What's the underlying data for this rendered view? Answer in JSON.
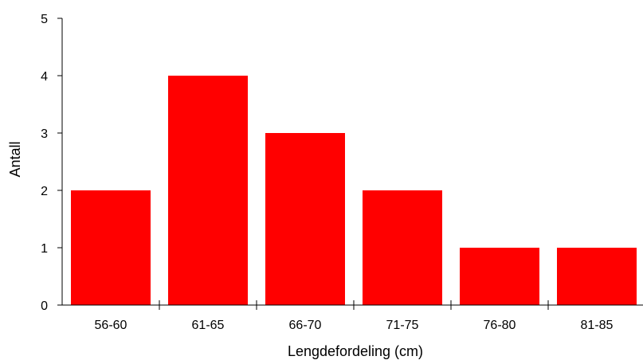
{
  "chart_data": {
    "type": "bar",
    "title": "",
    "xlabel": "Lengdefordeling (cm)",
    "ylabel": "Antall",
    "categories": [
      "56-60",
      "61-65",
      "66-70",
      "71-75",
      "76-80",
      "81-85"
    ],
    "values": [
      2,
      4,
      3,
      2,
      1,
      1
    ],
    "ylim": [
      0,
      5
    ],
    "yticks": [
      "0",
      "1",
      "2",
      "3",
      "4",
      "5"
    ],
    "grid": false,
    "legend": "none",
    "bar_color": "#FF0000"
  }
}
